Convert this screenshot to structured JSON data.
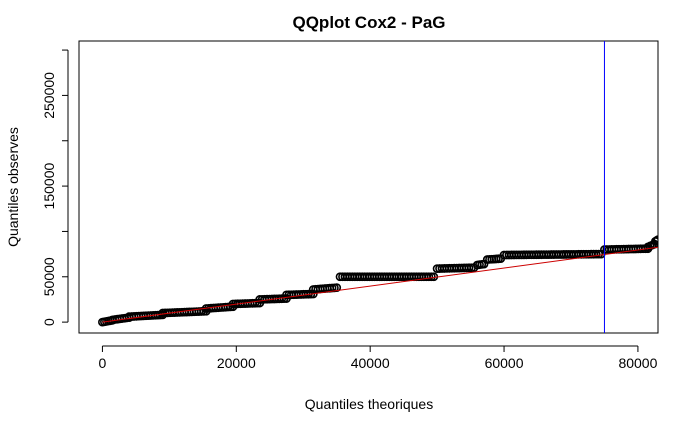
{
  "chart_data": {
    "type": "scatter",
    "title": "QQplot Cox2 - PaG",
    "xlabel": "Quantiles theoriques",
    "ylabel": "Quantiles observes",
    "xlim": [
      -3500,
      83000
    ],
    "ylim": [
      -12000,
      310000
    ],
    "x_ticks": [
      0,
      20000,
      40000,
      60000,
      80000
    ],
    "x_tick_labels": [
      "0",
      "20000",
      "40000",
      "60000",
      "80000"
    ],
    "y_ticks": [
      0,
      50000,
      150000,
      250000
    ],
    "y_tick_labels": [
      "0",
      "50000",
      "150000",
      "250000"
    ],
    "y_minor_ticks": [
      100000,
      200000,
      300000
    ],
    "grid": false,
    "points_color": "#000000",
    "reference_line": {
      "color": "#cc0000",
      "from": [
        0,
        0
      ],
      "to": [
        83000,
        82500
      ]
    },
    "vertical_line": {
      "color": "#0000ff",
      "x": 75000
    },
    "step_segments": [
      {
        "x": [
          0,
          1500
        ],
        "y": [
          0,
          2000
        ]
      },
      {
        "x": [
          1500,
          4000
        ],
        "y": [
          2500,
          5000
        ]
      },
      {
        "x": [
          4000,
          9000
        ],
        "y": [
          6000,
          8000
        ]
      },
      {
        "x": [
          9000,
          15500
        ],
        "y": [
          10000,
          12000
        ]
      },
      {
        "x": [
          15500,
          19500
        ],
        "y": [
          15000,
          17000
        ]
      },
      {
        "x": [
          19500,
          23500
        ],
        "y": [
          20000,
          21000
        ]
      },
      {
        "x": [
          23500,
          27500
        ],
        "y": [
          25000,
          26000
        ]
      },
      {
        "x": [
          27500,
          31500
        ],
        "y": [
          30000,
          31000
        ]
      },
      {
        "x": [
          31500,
          35000
        ],
        "y": [
          36000,
          38000
        ]
      },
      {
        "x": [
          35500,
          49500
        ],
        "y": [
          50000,
          50000
        ]
      },
      {
        "x": [
          50000,
          55500
        ],
        "y": [
          59000,
          60000
        ]
      },
      {
        "x": [
          56000,
          57000
        ],
        "y": [
          63000,
          64000
        ]
      },
      {
        "x": [
          57500,
          59500
        ],
        "y": [
          69000,
          70000
        ]
      },
      {
        "x": [
          60000,
          74500
        ],
        "y": [
          74000,
          75000
        ]
      },
      {
        "x": [
          75000,
          81500
        ],
        "y": [
          80000,
          81000
        ]
      },
      {
        "x": [
          81500,
          82500
        ],
        "y": [
          83000,
          86000
        ]
      },
      {
        "x": [
          82600,
          83000
        ],
        "y": [
          89000,
          91000
        ]
      }
    ]
  }
}
